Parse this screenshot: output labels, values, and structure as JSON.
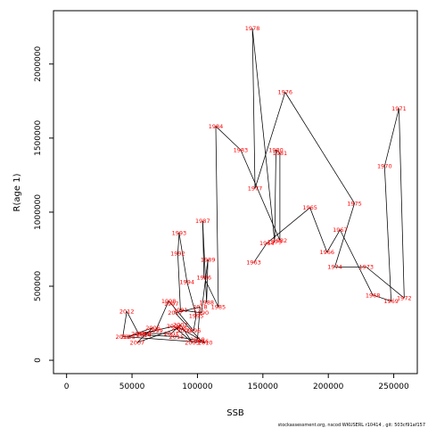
{
  "chart_data": {
    "type": "line",
    "xlabel": "SSB",
    "ylabel": "R(age 1)",
    "xlim": [
      -10000,
      268000
    ],
    "ylim": [
      -90000,
      2360000
    ],
    "xticks": [
      0,
      50000,
      100000,
      150000,
      200000,
      250000
    ],
    "yticks": [
      0,
      500000,
      1000000,
      1500000,
      2000000
    ],
    "point_color": "#ff0000",
    "line_color": "#000000",
    "footer": "stockassessment.org, nscod WKUSERL r10414 , git: 503cf91af157",
    "series": [
      {
        "points": [
          {
            "label": "1963",
            "x": 143000,
            "y": 660000
          },
          {
            "label": "1964",
            "x": 153000,
            "y": 790000
          },
          {
            "label": "1965",
            "x": 186000,
            "y": 1030000
          },
          {
            "label": "1966",
            "x": 199000,
            "y": 730000
          },
          {
            "label": "1967",
            "x": 209000,
            "y": 880000
          },
          {
            "label": "1968",
            "x": 234000,
            "y": 440000
          },
          {
            "label": "1969",
            "x": 248000,
            "y": 400000
          },
          {
            "label": "1970",
            "x": 243000,
            "y": 1310000
          },
          {
            "label": "1971",
            "x": 254000,
            "y": 1700000
          },
          {
            "label": "1972",
            "x": 258000,
            "y": 420000
          },
          {
            "label": "1973",
            "x": 229000,
            "y": 630000
          },
          {
            "label": "1974",
            "x": 205000,
            "y": 630000
          },
          {
            "label": "1975",
            "x": 220000,
            "y": 1060000
          },
          {
            "label": "1976",
            "x": 167000,
            "y": 1810000
          },
          {
            "label": "1977",
            "x": 144000,
            "y": 1160000
          },
          {
            "label": "1978",
            "x": 142000,
            "y": 2240000
          },
          {
            "label": "1979",
            "x": 159000,
            "y": 800000
          },
          {
            "label": "1980",
            "x": 160000,
            "y": 1420000
          },
          {
            "label": "1981",
            "x": 163000,
            "y": 1400000
          },
          {
            "label": "1982",
            "x": 163000,
            "y": 810000
          },
          {
            "label": "1983",
            "x": 133000,
            "y": 1420000
          },
          {
            "label": "1984",
            "x": 114000,
            "y": 1580000
          },
          {
            "label": "1985",
            "x": 116000,
            "y": 360000
          },
          {
            "label": "1986",
            "x": 105000,
            "y": 560000
          },
          {
            "label": "1987",
            "x": 104000,
            "y": 940000
          },
          {
            "label": "1988",
            "x": 107000,
            "y": 390000
          },
          {
            "label": "1989",
            "x": 108000,
            "y": 680000
          },
          {
            "label": "1990",
            "x": 103000,
            "y": 320000
          },
          {
            "label": "1991",
            "x": 87000,
            "y": 340000
          },
          {
            "label": "1992",
            "x": 85000,
            "y": 720000
          },
          {
            "label": "1993",
            "x": 86000,
            "y": 860000
          },
          {
            "label": "1994",
            "x": 92000,
            "y": 530000
          },
          {
            "label": "1995",
            "x": 99000,
            "y": 300000
          },
          {
            "label": "1996",
            "x": 97000,
            "y": 200000
          },
          {
            "label": "1997",
            "x": 80000,
            "y": 380000
          },
          {
            "label": "1998",
            "x": 78000,
            "y": 400000
          },
          {
            "label": "1999",
            "x": 68000,
            "y": 200000
          },
          {
            "label": "2000",
            "x": 59000,
            "y": 180000
          },
          {
            "label": "2001",
            "x": 80000,
            "y": 180000
          },
          {
            "label": "2002",
            "x": 87000,
            "y": 240000
          },
          {
            "label": "2003",
            "x": 96000,
            "y": 120000
          },
          {
            "label": "2004",
            "x": 82000,
            "y": 230000
          },
          {
            "label": "2005",
            "x": 47000,
            "y": 160000
          },
          {
            "label": "2006",
            "x": 66000,
            "y": 220000
          },
          {
            "label": "2007",
            "x": 54000,
            "y": 120000
          },
          {
            "label": "2008",
            "x": 86000,
            "y": 220000
          },
          {
            "label": "2009",
            "x": 90000,
            "y": 200000
          },
          {
            "label": "2010",
            "x": 106000,
            "y": 120000
          },
          {
            "label": "2011",
            "x": 43000,
            "y": 160000
          },
          {
            "label": "2012",
            "x": 46000,
            "y": 330000
          },
          {
            "label": "2013",
            "x": 55000,
            "y": 180000
          },
          {
            "label": "2014",
            "x": 59000,
            "y": 170000
          },
          {
            "label": "2015",
            "x": 84000,
            "y": 160000
          },
          {
            "label": "2016",
            "x": 103000,
            "y": 130000
          },
          {
            "label": "2017",
            "x": 83000,
            "y": 320000
          },
          {
            "label": "2018",
            "x": 102000,
            "y": 360000
          },
          {
            "label": "2019",
            "x": 100000,
            "y": 140000
          }
        ]
      }
    ]
  }
}
